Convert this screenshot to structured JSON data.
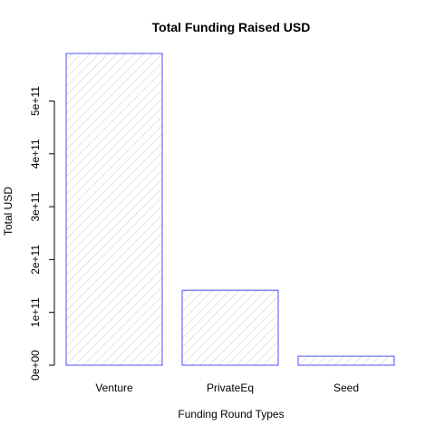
{
  "chart_data": {
    "type": "bar",
    "title": "Total Funding Raised USD",
    "xlabel": "Funding Round Types",
    "ylabel": "Total USD",
    "categories": [
      "Venture",
      "PrivateEq",
      "Seed"
    ],
    "values": [
      590000000000.0,
      142000000000.0,
      17000000000.0
    ],
    "ylim": [
      0,
      590000000000.0
    ],
    "yticks": [
      0,
      100000000000.0,
      200000000000.0,
      300000000000.0,
      400000000000.0,
      500000000000.0
    ],
    "ytick_labels": [
      "0e+00",
      "1e+11",
      "2e+11",
      "3e+11",
      "4e+11",
      "5e+11"
    ],
    "grid": false,
    "legend": "none",
    "bar_fill": "hatched",
    "colors": {
      "bar_border": "#4f4ff5",
      "bar_hatch": "#c9c9c9",
      "axis": "#000000",
      "background": "#ffffff"
    }
  }
}
